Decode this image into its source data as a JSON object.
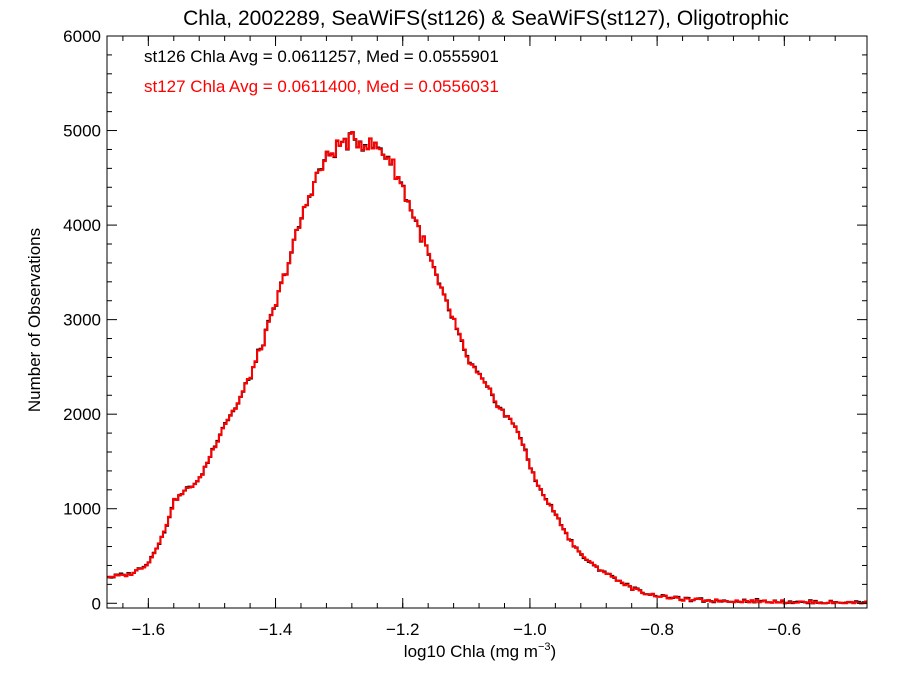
{
  "chart_data": {
    "type": "histogram-step",
    "title": "Chla, 2002289, SeaWiFS(st126) & SeaWiFS(st127), Oligotrophic",
    "xlabel_main": "log10 Chla (mg m",
    "xlabel_sup": "−3",
    "xlabel_close": ")",
    "ylabel": "Number of Observations",
    "xlim": [
      -1.665,
      -0.47
    ],
    "ylim": [
      -50,
      6000
    ],
    "xticks": [
      -1.6,
      -1.4,
      -1.2,
      -1.0,
      -0.8,
      -0.6
    ],
    "xtick_labels": [
      "−1.6",
      "−1.4",
      "−1.2",
      "−1.0",
      "−0.8",
      "−0.6"
    ],
    "yticks": [
      0,
      1000,
      2000,
      3000,
      4000,
      5000,
      6000
    ],
    "ytick_labels": [
      "0",
      "1000",
      "2000",
      "3000",
      "4000",
      "5000",
      "6000"
    ],
    "annotations": [
      {
        "text": "st126 Chla Avg = 0.0611257, Med = 0.0555901",
        "color": "#000000"
      },
      {
        "text": "st127 Chla Avg = 0.0611400, Med = 0.0556031",
        "color": "#ff0000"
      }
    ],
    "bin_width": 0.004,
    "series": [
      {
        "color": "#000000",
        "ref": "shape",
        "offset": 20
      },
      {
        "color": "#ff0000",
        "ref": "shape",
        "offset": 0
      }
    ],
    "shape": [
      [
        -1.665,
        280
      ],
      [
        -1.63,
        300
      ],
      [
        -1.6,
        420
      ],
      [
        -1.575,
        750
      ],
      [
        -1.56,
        1080
      ],
      [
        -1.54,
        1200
      ],
      [
        -1.52,
        1300
      ],
      [
        -1.5,
        1600
      ],
      [
        -1.48,
        1900
      ],
      [
        -1.46,
        2100
      ],
      [
        -1.44,
        2400
      ],
      [
        -1.42,
        2750
      ],
      [
        -1.4,
        3150
      ],
      [
        -1.38,
        3600
      ],
      [
        -1.36,
        4050
      ],
      [
        -1.34,
        4450
      ],
      [
        -1.32,
        4700
      ],
      [
        -1.3,
        4850
      ],
      [
        -1.28,
        4900
      ],
      [
        -1.26,
        4870
      ],
      [
        -1.24,
        4820
      ],
      [
        -1.22,
        4700
      ],
      [
        -1.2,
        4400
      ],
      [
        -1.18,
        4050
      ],
      [
        -1.16,
        3700
      ],
      [
        -1.14,
        3300
      ],
      [
        -1.12,
        3000
      ],
      [
        -1.1,
        2600
      ],
      [
        -1.08,
        2400
      ],
      [
        -1.06,
        2200
      ],
      [
        -1.04,
        2000
      ],
      [
        -1.02,
        1850
      ],
      [
        -1.0,
        1450
      ],
      [
        -0.98,
        1150
      ],
      [
        -0.96,
        950
      ],
      [
        -0.94,
        700
      ],
      [
        -0.92,
        520
      ],
      [
        -0.9,
        400
      ],
      [
        -0.88,
        320
      ],
      [
        -0.86,
        240
      ],
      [
        -0.84,
        160
      ],
      [
        -0.82,
        110
      ],
      [
        -0.8,
        80
      ],
      [
        -0.78,
        60
      ],
      [
        -0.76,
        40
      ],
      [
        -0.72,
        30
      ],
      [
        -0.68,
        25
      ],
      [
        -0.62,
        20
      ],
      [
        -0.56,
        10
      ],
      [
        -0.47,
        5
      ]
    ]
  }
}
